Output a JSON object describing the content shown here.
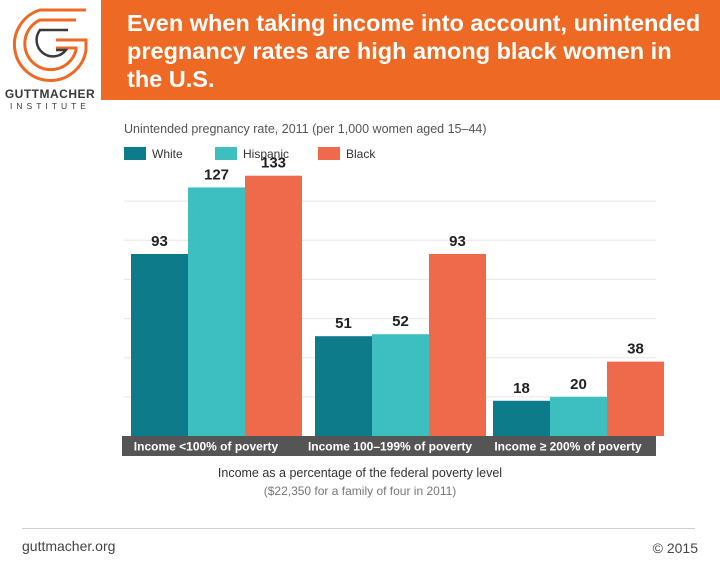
{
  "logo": {
    "name": "GUTTMACHER",
    "sub": "INSTITUTE",
    "accent": "#ee6a24"
  },
  "header": {
    "title": "Even when taking income into account, unintended pregnancy rates are high among black women in the U.S.",
    "color": "#ee6a24"
  },
  "chart_data": {
    "type": "bar",
    "subtitle": "Unintended pregnancy rate, 2011 (per 1,000 women aged 15–44)",
    "categories": [
      "Income <100% of poverty",
      "Income 100–199% of poverty",
      "Income ≥ 200% of poverty"
    ],
    "series": [
      {
        "name": "White",
        "color": "#0d7b8a",
        "values": [
          93,
          51,
          18
        ]
      },
      {
        "name": "Hispanic",
        "color": "#3ebfbf",
        "values": [
          127,
          52,
          20
        ]
      },
      {
        "name": "Black",
        "color": "#ef6a4b",
        "values": [
          133,
          93,
          38
        ]
      }
    ],
    "ylim": [
      0,
      140
    ],
    "grid": true,
    "legend": "top-left",
    "xlabel": "Income as a percentage of the federal poverty level",
    "xnote": "($22,350 for a family of four in 2011)"
  },
  "footer": {
    "site": "guttmacher.org",
    "copyright": "© 2015"
  }
}
